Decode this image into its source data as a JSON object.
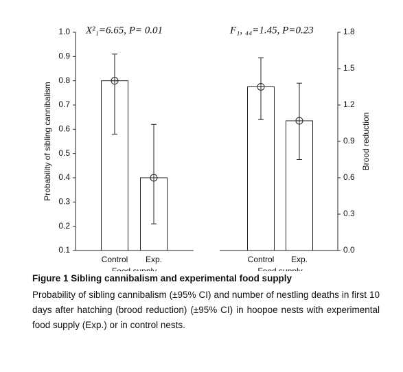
{
  "chart_data": [
    {
      "type": "bar",
      "annotation": "Χ²₁=6.65, P= 0.01",
      "ylabel": "Probability of sibling cannibalism",
      "xlabel": "Food supply",
      "categories": [
        "Control",
        "Exp."
      ],
      "values": [
        0.8,
        0.4
      ],
      "ci_low": [
        0.58,
        0.21
      ],
      "ci_high": [
        0.91,
        0.62
      ],
      "color": "#ffffff",
      "ylim": [
        0.1,
        1
      ],
      "yticks": [
        0.1,
        0.2,
        0.3,
        0.4,
        0.5,
        0.6,
        0.7,
        0.8,
        0.9,
        {
          "value": 1,
          "label": "1.0"
        }
      ]
    },
    {
      "type": "bar",
      "annotation": "F₁, ₄₄=1.45, P=0.23",
      "ylabel": "Brood reduction",
      "xlabel": "Food supply",
      "categories": [
        "Control",
        "Exp."
      ],
      "values": [
        1.35,
        1.07
      ],
      "ci_low": [
        1.08,
        0.75
      ],
      "ci_high": [
        1.59,
        1.38
      ],
      "color": "#ffffff",
      "axis": "y2",
      "y2lim": [
        0,
        1.8
      ],
      "y2ticks": [
        {
          "value": 0,
          "label": "0.0"
        },
        0.3,
        0.6,
        0.9,
        1.2,
        1.5,
        1.8
      ]
    }
  ],
  "caption": {
    "title": "Figure 1  Sibling cannibalism and experimental food supply",
    "body": "Probability of sibling cannibalism (±95% CI) and number of nestling deaths in first 10 days after hatching (brood reduction) (±95% CI) in hoopoe nests with experimental food supply (Exp.) or in control nests."
  }
}
